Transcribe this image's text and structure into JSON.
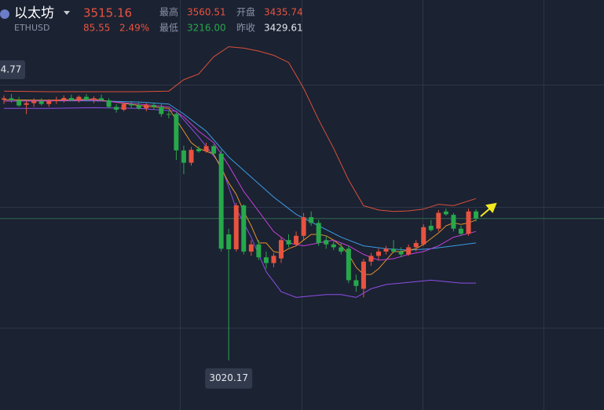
{
  "header": {
    "name": "以太坊",
    "symbol": "ETHUSD",
    "price": 3515.16,
    "change": 85.55,
    "change_pct": "2.49%",
    "high_label": "最高",
    "high": 3560.51,
    "open_label": "开盘",
    "open": 3435.74,
    "low_label": "最低",
    "low": "3216.00",
    "prev_close_label": "昨收",
    "prev_close": 3429.61
  },
  "chart_data": {
    "type": "candlestick",
    "ylim": [
      2847,
      4278
    ],
    "up_color": "#e8533f",
    "down_color": "#27a84b",
    "high_marker": "4.77",
    "low_marker_index": 30,
    "ohlc": {
      "open": [
        3930,
        3935,
        3928,
        3912,
        3918,
        3925,
        3915,
        3925,
        3930,
        3936,
        3928,
        3940,
        3930,
        3935,
        3928,
        3905,
        3895,
        3915,
        3910,
        3900,
        3912,
        3905,
        3880,
        3880,
        3753,
        3710,
        3758,
        3750,
        3768,
        3742,
        3460,
        3408,
        3561,
        3400,
        3425,
        3380,
        3360,
        3376,
        3440,
        3425,
        3455,
        3520,
        3500,
        3440,
        3425,
        3415,
        3410,
        3300,
        3270,
        3365,
        3385,
        3400,
        3410,
        3400,
        3390,
        3415,
        3425,
        3490,
        3480,
        3540,
        3528,
        3480,
        3462,
        3540
      ],
      "high": [
        3945,
        3950,
        3940,
        3925,
        3935,
        3935,
        3932,
        3940,
        3945,
        3948,
        3945,
        3950,
        3942,
        3948,
        3935,
        3915,
        3920,
        3925,
        3920,
        3918,
        3920,
        3915,
        3892,
        3885,
        3770,
        3765,
        3768,
        3780,
        3775,
        3755,
        3480,
        3570,
        3565,
        3440,
        3440,
        3400,
        3395,
        3450,
        3460,
        3470,
        3535,
        3540,
        3510,
        3455,
        3440,
        3430,
        3420,
        3320,
        3375,
        3395,
        3410,
        3420,
        3440,
        3415,
        3425,
        3440,
        3495,
        3510,
        3545,
        3550,
        3535,
        3490,
        3550,
        3548
      ],
      "low": [
        3915,
        3920,
        3905,
        3880,
        3905,
        3910,
        3905,
        3915,
        3920,
        3925,
        3920,
        3925,
        3918,
        3925,
        3900,
        3885,
        3890,
        3900,
        3895,
        3890,
        3895,
        3870,
        3865,
        3720,
        3670,
        3700,
        3745,
        3745,
        3735,
        3400,
        3020.17,
        3400,
        3390,
        3385,
        3370,
        3340,
        3345,
        3360,
        3415,
        3420,
        3440,
        3490,
        3420,
        3410,
        3405,
        3390,
        3290,
        3260,
        3240,
        3350,
        3370,
        3390,
        3395,
        3380,
        3385,
        3400,
        3420,
        3470,
        3470,
        3525,
        3470,
        3455,
        3455,
        3505
      ],
      "close": [
        3935,
        3928,
        3910,
        3918,
        3925,
        3915,
        3925,
        3930,
        3936,
        3928,
        3940,
        3930,
        3935,
        3928,
        3905,
        3895,
        3915,
        3910,
        3900,
        3912,
        3905,
        3880,
        3878,
        3753,
        3710,
        3755,
        3750,
        3768,
        3742,
        3410,
        3408,
        3561,
        3400,
        3425,
        3380,
        3360,
        3385,
        3440,
        3425,
        3455,
        3520,
        3500,
        3430,
        3425,
        3415,
        3400,
        3300,
        3280,
        3365,
        3385,
        3400,
        3410,
        3400,
        3390,
        3415,
        3430,
        3485,
        3475,
        3535,
        3530,
        3480,
        3462,
        3540,
        3515.16
      ]
    },
    "lines": [
      {
        "color": "#d8503a",
        "x": [
          0,
          6,
          12,
          18,
          22,
          24,
          26,
          28,
          30,
          32,
          34,
          36,
          38,
          40,
          42,
          44,
          46,
          48,
          50,
          52,
          54,
          56,
          58,
          60,
          63
        ],
        "values": [
          3960,
          3958,
          3958,
          3958,
          3960,
          4000,
          4020,
          4080,
          4115,
          4110,
          4100,
          4085,
          4060,
          3970,
          3860,
          3760,
          3650,
          3560,
          3545,
          3540,
          3542,
          3548,
          3565,
          3560,
          3585
        ]
      },
      {
        "color": "#3d9be3",
        "x": [
          0,
          6,
          12,
          18,
          22,
          24,
          27,
          30,
          33,
          36,
          39,
          42,
          45,
          48,
          51,
          54,
          57,
          60,
          63
        ],
        "values": [
          3925,
          3926,
          3926,
          3922,
          3915,
          3880,
          3820,
          3730,
          3660,
          3590,
          3530,
          3490,
          3450,
          3420,
          3410,
          3405,
          3410,
          3420,
          3430
        ]
      },
      {
        "color": "#8d4fe6",
        "x": [
          0,
          6,
          12,
          18,
          23,
          26,
          29,
          31,
          33,
          35,
          37,
          39,
          41,
          43,
          45,
          47,
          49,
          51,
          53,
          55,
          57,
          59,
          61,
          63
        ],
        "values": [
          3900,
          3900,
          3902,
          3900,
          3890,
          3800,
          3700,
          3550,
          3450,
          3330,
          3260,
          3240,
          3245,
          3250,
          3250,
          3240,
          3270,
          3285,
          3290,
          3295,
          3300,
          3295,
          3290,
          3290
        ]
      },
      {
        "color": "#e3922b",
        "x": [
          0,
          6,
          12,
          18,
          22,
          23,
          24,
          25,
          26,
          27,
          28,
          29,
          30,
          31,
          32,
          33,
          34,
          35,
          36,
          37,
          38,
          39,
          40,
          41,
          42,
          43,
          44,
          45,
          46,
          47,
          48,
          49,
          50,
          51,
          52,
          53,
          54,
          55,
          56,
          57,
          58,
          59,
          60,
          61,
          62,
          63
        ],
        "values": [
          3930,
          3928,
          3932,
          3910,
          3900,
          3860,
          3820,
          3780,
          3760,
          3750,
          3740,
          3690,
          3640,
          3600,
          3540,
          3490,
          3430,
          3430,
          3400,
          3395,
          3410,
          3420,
          3440,
          3460,
          3460,
          3455,
          3440,
          3420,
          3390,
          3345,
          3320,
          3320,
          3340,
          3370,
          3400,
          3400,
          3405,
          3410,
          3425,
          3445,
          3465,
          3490,
          3500,
          3495,
          3500,
          3510
        ]
      },
      {
        "color": "#c43fd8",
        "x": [
          0,
          6,
          12,
          18,
          22,
          24,
          26,
          28,
          30,
          32,
          34,
          36,
          38,
          40,
          42,
          44,
          46,
          48,
          50,
          52,
          54,
          56,
          58,
          60,
          63
        ],
        "values": [
          3925,
          3926,
          3928,
          3915,
          3905,
          3870,
          3820,
          3780,
          3700,
          3610,
          3540,
          3470,
          3430,
          3420,
          3430,
          3440,
          3420,
          3390,
          3370,
          3375,
          3390,
          3400,
          3420,
          3450,
          3470
        ]
      }
    ]
  }
}
